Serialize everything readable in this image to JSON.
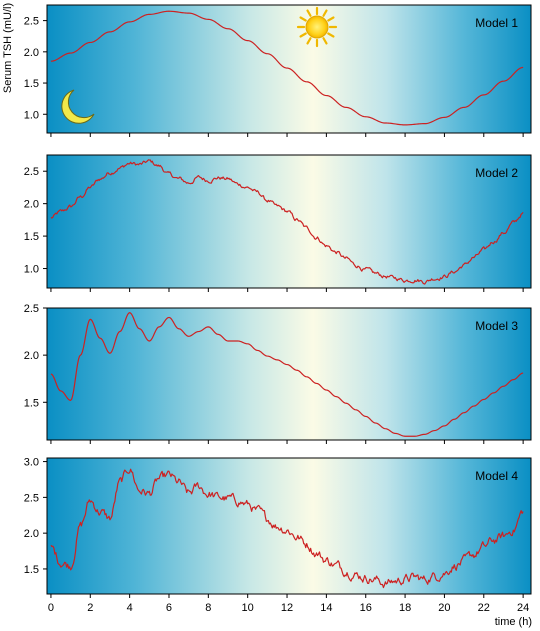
{
  "chart_data": {
    "type": "line",
    "ylabel": "Serum TSH (mU/l)",
    "xlabel": "time (h)",
    "x_ticks": [
      0,
      2,
      4,
      6,
      8,
      10,
      12,
      14,
      16,
      18,
      20,
      22,
      24
    ],
    "xlim": [
      -0.2,
      24.4
    ],
    "colors": {
      "line": "#cc2222",
      "bg_dark": "#0a8fc4",
      "bg_light": "#fbfbe6"
    },
    "icons": [
      "moon-icon",
      "sun-icon"
    ],
    "panels": [
      {
        "name": "Model 1",
        "ylim": [
          0.7,
          2.75
        ],
        "yticks": [
          1.0,
          1.5,
          2.0,
          2.5
        ],
        "ytick_labels": [
          "1.0",
          "1.5",
          "2.0",
          "2.5"
        ],
        "noise": 0,
        "x": [
          0,
          1,
          2,
          3,
          4,
          5,
          6,
          7,
          8,
          9,
          10,
          11,
          12,
          13,
          14,
          15,
          16,
          17,
          18,
          19,
          20,
          21,
          22,
          23,
          24
        ],
        "y": [
          1.85,
          1.98,
          2.15,
          2.32,
          2.48,
          2.6,
          2.65,
          2.62,
          2.52,
          2.37,
          2.18,
          1.97,
          1.74,
          1.52,
          1.3,
          1.11,
          0.96,
          0.86,
          0.83,
          0.85,
          0.95,
          1.11,
          1.31,
          1.53,
          1.75
        ]
      },
      {
        "name": "Model 2",
        "ylim": [
          0.7,
          2.75
        ],
        "yticks": [
          1.0,
          1.5,
          2.0,
          2.5
        ],
        "ytick_labels": [
          "1.0",
          "1.5",
          "2.0",
          "2.5"
        ],
        "noise": 0.025,
        "x": [
          0,
          0.5,
          1,
          1.5,
          2,
          2.5,
          3,
          3.5,
          4,
          4.5,
          5,
          5.5,
          6,
          6.5,
          7,
          7.5,
          8,
          8.5,
          9,
          9.5,
          10,
          10.5,
          11,
          11.5,
          12,
          12.5,
          13,
          13.5,
          14,
          14.5,
          15,
          15.5,
          16,
          16.5,
          17,
          17.5,
          18,
          18.5,
          19,
          19.5,
          20,
          20.5,
          21,
          21.5,
          22,
          22.5,
          23,
          23.5,
          24
        ],
        "y": [
          1.78,
          1.87,
          1.95,
          2.1,
          2.25,
          2.38,
          2.48,
          2.55,
          2.62,
          2.6,
          2.65,
          2.58,
          2.45,
          2.38,
          2.32,
          2.4,
          2.36,
          2.4,
          2.38,
          2.3,
          2.25,
          2.17,
          2.05,
          1.95,
          1.88,
          1.75,
          1.62,
          1.48,
          1.35,
          1.25,
          1.15,
          1.05,
          0.98,
          0.92,
          0.88,
          0.85,
          0.82,
          0.83,
          0.8,
          0.85,
          0.88,
          0.95,
          1.05,
          1.17,
          1.28,
          1.42,
          1.55,
          1.7,
          1.85
        ]
      },
      {
        "name": "Model 3",
        "ylim": [
          1.1,
          2.5
        ],
        "yticks": [
          1.5,
          2.0,
          2.5
        ],
        "ytick_labels": [
          "1.5",
          "2.0",
          "2.5"
        ],
        "noise": 0,
        "x": [
          0,
          0.5,
          1,
          1.5,
          2,
          2.5,
          3,
          3.5,
          4,
          4.5,
          5,
          5.5,
          6,
          6.5,
          7,
          7.5,
          8,
          8.5,
          9,
          9.5,
          10,
          10.5,
          11,
          11.5,
          12,
          12.5,
          13,
          13.5,
          14,
          14.5,
          15,
          15.5,
          16,
          16.5,
          17,
          17.5,
          18,
          18.5,
          19,
          19.5,
          20,
          20.5,
          21,
          21.5,
          22,
          22.5,
          23,
          23.5,
          24
        ],
        "y": [
          1.8,
          1.62,
          1.52,
          2.0,
          2.38,
          2.18,
          2.02,
          2.25,
          2.45,
          2.28,
          2.15,
          2.3,
          2.4,
          2.28,
          2.2,
          2.25,
          2.3,
          2.22,
          2.15,
          2.15,
          2.12,
          2.05,
          1.99,
          1.95,
          1.9,
          1.84,
          1.77,
          1.7,
          1.63,
          1.56,
          1.49,
          1.42,
          1.35,
          1.28,
          1.22,
          1.17,
          1.14,
          1.14,
          1.16,
          1.2,
          1.25,
          1.32,
          1.39,
          1.46,
          1.53,
          1.6,
          1.67,
          1.74,
          1.81
        ]
      },
      {
        "name": "Model 4",
        "ylim": [
          1.15,
          3.05
        ],
        "yticks": [
          1.5,
          2.0,
          2.5,
          3.0
        ],
        "ytick_labels": [
          "1.5",
          "2.0",
          "2.5",
          "3.0"
        ],
        "noise": 0.05,
        "x": [
          0,
          0.5,
          1,
          1.5,
          2,
          2.5,
          3,
          3.5,
          4,
          4.5,
          5,
          5.5,
          6,
          6.5,
          7,
          7.5,
          8,
          8.5,
          9,
          9.5,
          10,
          10.5,
          11,
          11.5,
          12,
          12.5,
          13,
          13.5,
          14,
          14.5,
          15,
          15.5,
          16,
          16.5,
          17,
          17.5,
          18,
          18.5,
          19,
          19.5,
          20,
          20.5,
          21,
          21.5,
          22,
          22.5,
          23,
          23.5,
          24
        ],
        "y": [
          1.8,
          1.6,
          1.55,
          2.1,
          2.45,
          2.3,
          2.2,
          2.7,
          2.9,
          2.6,
          2.55,
          2.75,
          2.8,
          2.7,
          2.55,
          2.65,
          2.55,
          2.5,
          2.48,
          2.45,
          2.4,
          2.3,
          2.2,
          2.1,
          2.05,
          1.95,
          1.85,
          1.72,
          1.62,
          1.55,
          1.48,
          1.42,
          1.38,
          1.35,
          1.3,
          1.33,
          1.36,
          1.38,
          1.35,
          1.4,
          1.45,
          1.55,
          1.6,
          1.7,
          1.8,
          1.9,
          1.95,
          2.05,
          2.3
        ]
      }
    ]
  }
}
